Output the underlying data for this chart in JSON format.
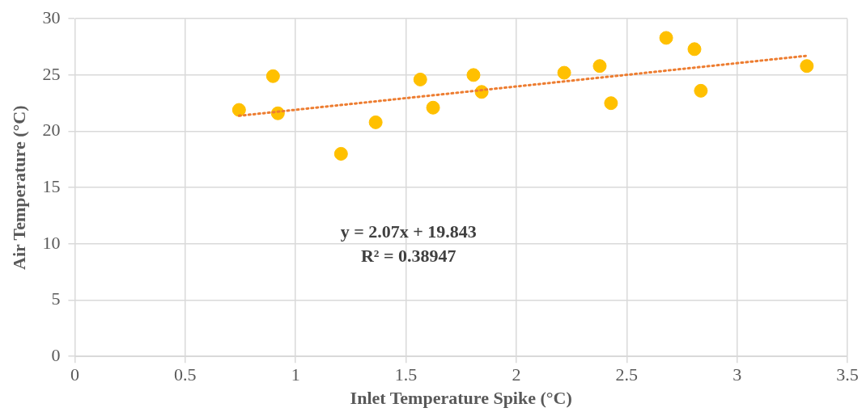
{
  "chart_data": {
    "type": "scatter",
    "xlabel": "Inlet Temperature Spike (°C)",
    "ylabel": "Air Temperature (°C)",
    "xlim": [
      0,
      3.5
    ],
    "xticks": [
      0,
      0.5,
      1,
      1.5,
      2,
      2.5,
      3,
      3.5
    ],
    "ylim": [
      0,
      30
    ],
    "yticks": [
      0,
      5,
      10,
      15,
      20,
      25,
      30
    ],
    "grid": true,
    "legend": false,
    "annotations": [
      "y = 2.07x + 19.843",
      "R² = 0.38947"
    ],
    "series": [
      {
        "type": "scatter",
        "color": "#ffc000",
        "marker": "circle",
        "x": [
          0.744,
          0.898,
          0.92,
          1.206,
          1.363,
          1.565,
          1.623,
          1.806,
          1.843,
          2.217,
          2.378,
          2.429,
          2.679,
          2.807,
          2.836,
          3.316
        ],
        "values": [
          21.9,
          24.9,
          21.6,
          18.0,
          20.8,
          24.6,
          22.1,
          25.0,
          23.5,
          25.2,
          25.8,
          22.5,
          28.3,
          27.3,
          23.6,
          25.8
        ]
      },
      {
        "type": "line",
        "color": "#ed7d31",
        "marker": "none",
        "line_style": "dotted",
        "x": [
          0.744,
          3.316
        ],
        "values": [
          21.38,
          26.71
        ]
      }
    ]
  }
}
